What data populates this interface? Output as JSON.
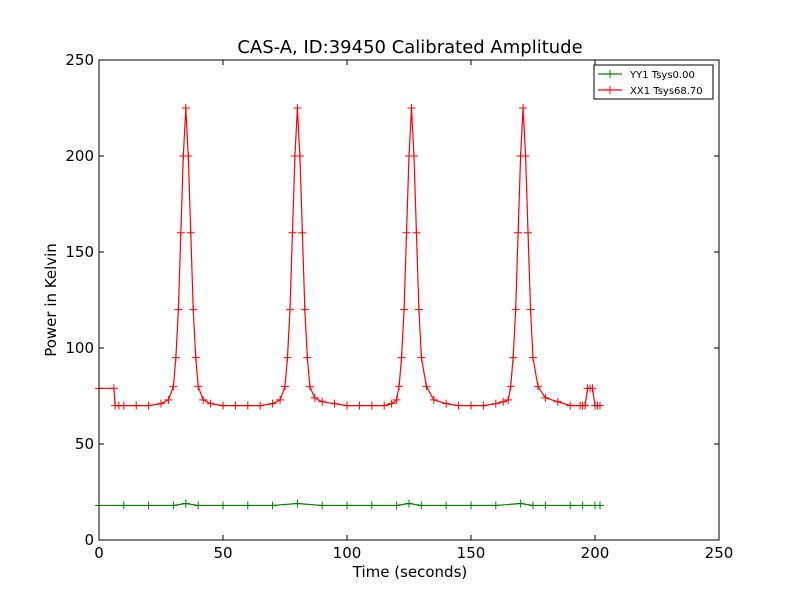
{
  "chart_data": {
    "type": "line",
    "title": "CAS-A, ID:39450 Calibrated Amplitude",
    "xlabel": "Time (seconds)",
    "ylabel": "Power in Kelvin",
    "xlim": [
      0,
      250
    ],
    "ylim": [
      0,
      250
    ],
    "xticks": [
      0,
      50,
      100,
      150,
      200,
      250
    ],
    "yticks": [
      0,
      50,
      100,
      150,
      200,
      250
    ],
    "grid": false,
    "legend_position": "top-right",
    "marker": "plus",
    "series": [
      {
        "name": "YY1 Tsys0.00",
        "color": "#008000",
        "x": [
          0,
          10,
          20,
          30,
          35,
          40,
          50,
          60,
          70,
          80,
          90,
          100,
          110,
          120,
          125,
          130,
          140,
          150,
          160,
          170,
          175,
          180,
          190,
          195,
          200,
          202
        ],
        "y": [
          18,
          18,
          18,
          18,
          19,
          18,
          18,
          18,
          18,
          19,
          18,
          18,
          18,
          18,
          19,
          18,
          18,
          18,
          18,
          19,
          18,
          18,
          18,
          18,
          18,
          18
        ]
      },
      {
        "name": "XX1 Tsys68.70",
        "color": "#ff0000",
        "x": [
          0,
          6,
          6.5,
          8,
          10,
          15,
          20,
          25,
          28,
          30,
          31,
          32,
          33,
          34,
          35,
          36,
          37,
          38,
          39,
          40,
          42,
          45,
          50,
          55,
          60,
          65,
          70,
          73,
          75,
          76,
          77,
          78,
          79,
          80,
          81,
          82,
          83,
          84,
          85,
          87,
          90,
          95,
          100,
          105,
          110,
          115,
          118,
          120,
          121,
          122,
          123,
          124,
          125,
          126,
          127,
          128,
          129,
          130,
          132,
          135,
          140,
          145,
          150,
          155,
          160,
          163,
          165,
          166,
          167,
          168,
          169,
          170,
          171,
          172,
          173,
          174,
          175,
          177,
          180,
          185,
          190,
          194,
          195,
          196,
          197,
          198,
          199,
          200,
          201,
          202
        ],
        "y": [
          79,
          79,
          70,
          70,
          70,
          70,
          70,
          71,
          73,
          80,
          95,
          120,
          160,
          200,
          225,
          200,
          160,
          120,
          95,
          80,
          73,
          71,
          70,
          70,
          70,
          70,
          71,
          73,
          80,
          95,
          120,
          160,
          200,
          225,
          200,
          160,
          120,
          95,
          80,
          74,
          72,
          71,
          70,
          70,
          70,
          70,
          71,
          73,
          80,
          95,
          120,
          160,
          200,
          225,
          200,
          160,
          120,
          95,
          80,
          73,
          71,
          70,
          70,
          70,
          71,
          72,
          73,
          80,
          95,
          120,
          160,
          200,
          225,
          200,
          160,
          120,
          95,
          80,
          74,
          72,
          70,
          70,
          70,
          70,
          79,
          79,
          79,
          70,
          70,
          70
        ]
      }
    ]
  }
}
